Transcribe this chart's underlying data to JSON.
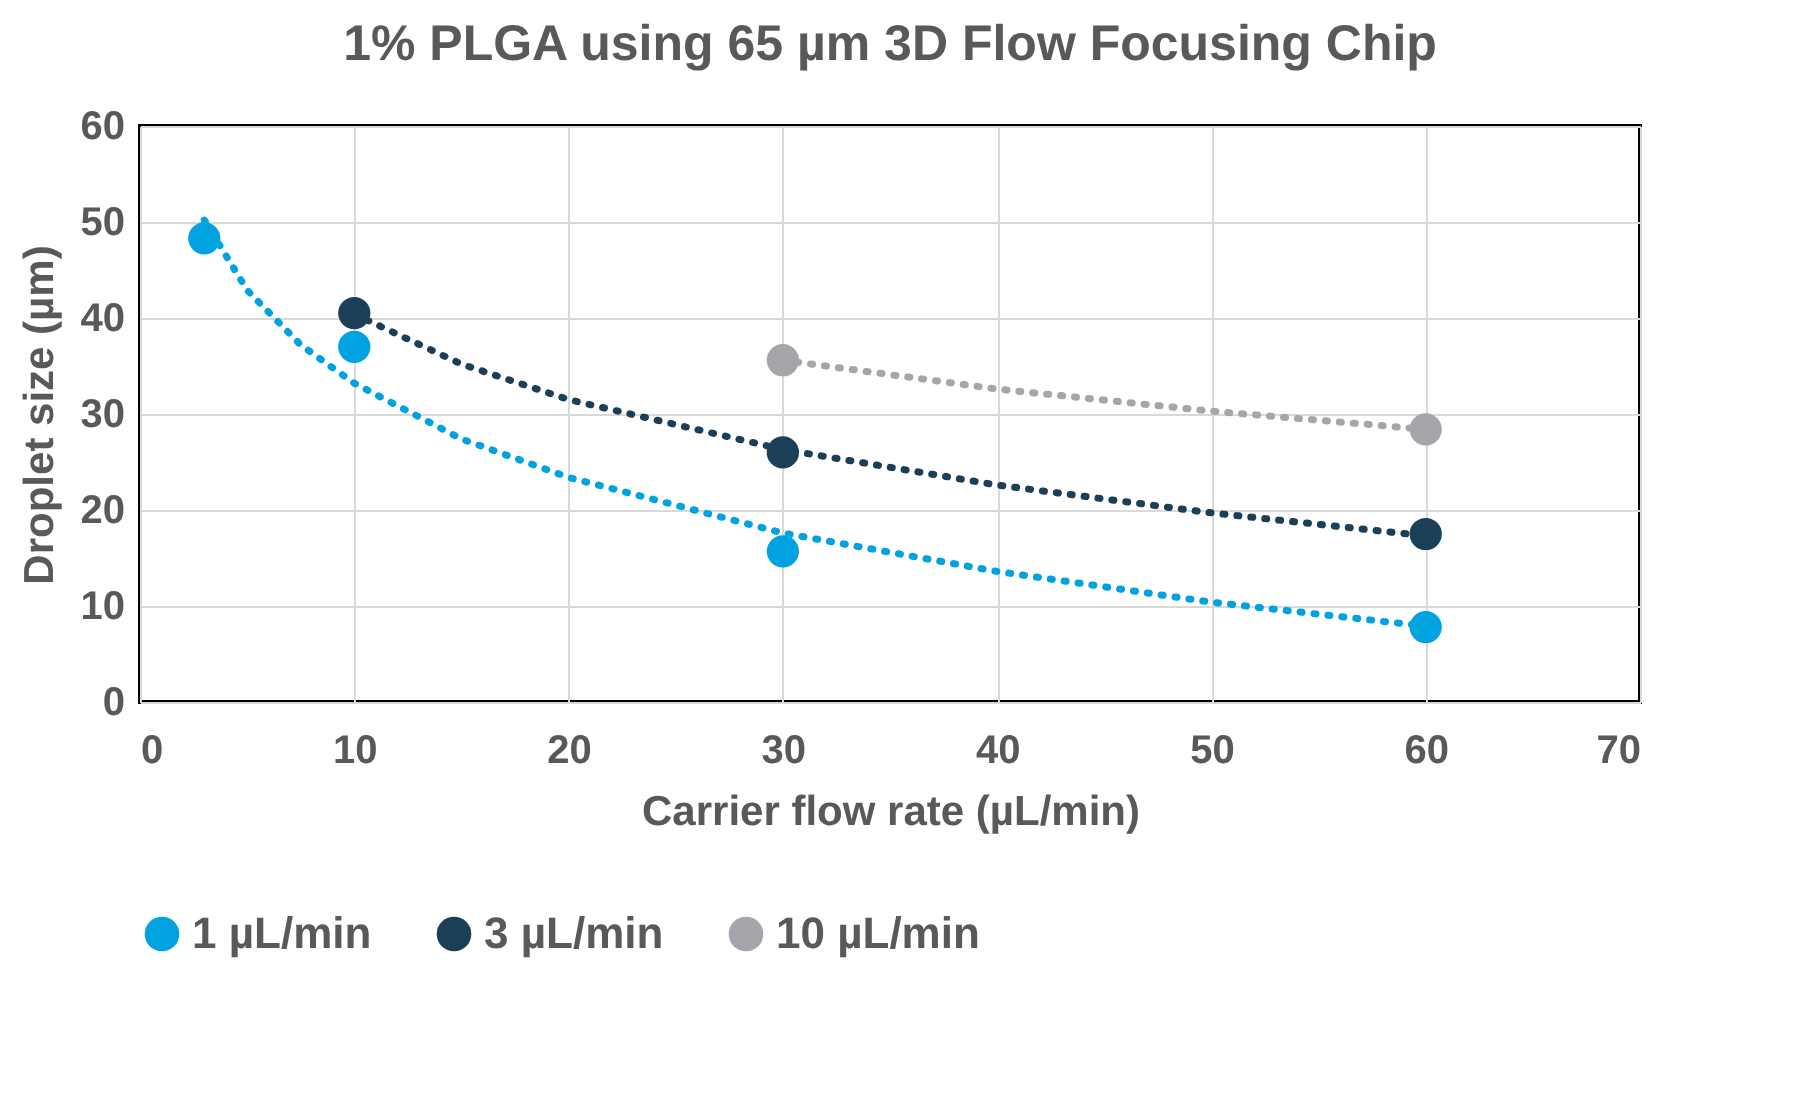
{
  "chart_data": {
    "type": "scatter",
    "title": "1% PLGA using 65 µm 3D Flow Focusing Chip",
    "xlabel": "Carrier flow rate (µL/min)",
    "ylabel": "Droplet size (µm)",
    "xlim": [
      0,
      70
    ],
    "xticks": [
      0,
      10,
      20,
      30,
      40,
      50,
      60,
      70
    ],
    "ylim": [
      0,
      60
    ],
    "yticks": [
      0,
      10,
      20,
      30,
      40,
      50,
      60
    ],
    "grid": true,
    "legend": "bottom",
    "marker": "circle",
    "series": [
      {
        "name": "1 µL/min",
        "color": "#00a3e0",
        "x": [
          3,
          10,
          30,
          60
        ],
        "values": [
          48.3,
          37,
          15.7,
          7.8
        ]
      },
      {
        "name": "3 µL/min",
        "color": "#1b3f57",
        "x": [
          10,
          30,
          60
        ],
        "values": [
          40.5,
          26,
          17.5
        ]
      },
      {
        "name": "10 µL/min",
        "color": "#a5a5ab",
        "x": [
          30,
          60
        ],
        "values": [
          35.6,
          28.4
        ]
      },
      {
        "type": "line",
        "line_style": "dotted",
        "marker": "none",
        "color": "#00a3e0",
        "x": [
          3,
          5,
          7.5,
          10,
          15,
          20,
          30,
          40,
          50,
          60
        ],
        "values": [
          50.2,
          42.9,
          37.2,
          33.2,
          27.4,
          23.4,
          17.6,
          13.6,
          10.4,
          7.9
        ]
      },
      {
        "type": "line",
        "line_style": "dotted",
        "marker": "none",
        "color": "#1b3f57",
        "x": [
          10,
          15,
          20,
          30,
          40,
          50,
          60
        ],
        "values": [
          40.4,
          35.2,
          31.5,
          26.3,
          22.6,
          19.7,
          17.3
        ]
      },
      {
        "type": "line",
        "line_style": "dotted",
        "marker": "none",
        "color": "#a5a5ab",
        "x": [
          30,
          40,
          50,
          60
        ],
        "values": [
          35.6,
          32.6,
          30.3,
          28.4
        ]
      }
    ]
  }
}
